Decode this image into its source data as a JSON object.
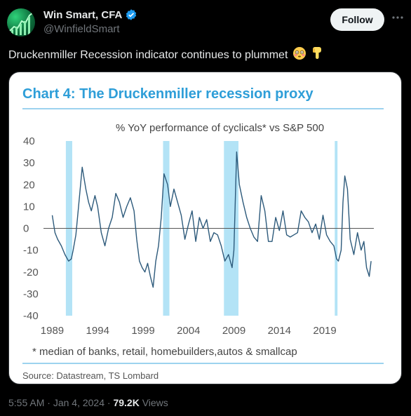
{
  "author": {
    "name": "Win Smart, CFA",
    "handle": "@WinfieldSmart",
    "verified": true
  },
  "follow_label": "Follow",
  "tweet_text": "Druckenmiller Recession indicator continues to plummet",
  "emojis": [
    "flushed-face-emoji",
    "backhand-index-pointing-down-emoji"
  ],
  "media": {
    "chart_title": "Chart 4: The Druckenmiller recession proxy",
    "subtitle": "% YoY performance of cyclicals* vs S&P 500",
    "footnote": "* median of banks, retail, homebuilders,autos & smallcap",
    "source": "Source: Datastream, TS Lombard"
  },
  "chart_data": {
    "type": "line",
    "title": "Chart 4: The Druckenmiller recession proxy",
    "subtitle": "% YoY performance of cyclicals* vs S&P 500",
    "ylim": [
      -40,
      40
    ],
    "y_ticks": [
      "40",
      "30",
      "20",
      "10",
      "0",
      "-10",
      "-20",
      "-30",
      "-40"
    ],
    "y_tick_values": [
      40,
      30,
      20,
      10,
      0,
      -10,
      -20,
      -30,
      -40
    ],
    "xlim": [
      1988.5,
      2024.4
    ],
    "x_ticks": [
      "1989",
      "1994",
      "1999",
      "2004",
      "2009",
      "2014",
      "2019"
    ],
    "x_tick_values": [
      1989,
      1994,
      1999,
      2004,
      2009,
      2014,
      2019
    ],
    "recession_bands": [
      [
        1990.5,
        1991.2
      ],
      [
        2001.2,
        2001.9
      ],
      [
        2007.9,
        2009.5
      ],
      [
        2020.1,
        2020.4
      ]
    ],
    "colors": {
      "line": "#2d5a7b",
      "band": "#b3e3f6",
      "zero_line": "#555555"
    },
    "series": [
      {
        "x": [
          1989.0,
          1989.3,
          1989.6,
          1990.0,
          1990.4,
          1990.8,
          1991.1,
          1991.3,
          1991.6,
          1991.9,
          1992.3,
          1992.7,
          1993.0,
          1993.3,
          1993.7,
          1994.0,
          1994.4,
          1994.8,
          1995.2,
          1995.6,
          1996.0,
          1996.4,
          1996.8,
          1997.2,
          1997.6,
          1998.0,
          1998.3,
          1998.6,
          1998.9,
          1999.2,
          1999.5,
          1999.8,
          2000.1,
          2000.4,
          2000.7,
          2001.0,
          2001.3,
          2001.7,
          2002.0,
          2002.4,
          2002.8,
          2003.2,
          2003.6,
          2004.0,
          2004.4,
          2004.8,
          2005.2,
          2005.6,
          2006.0,
          2006.4,
          2006.8,
          2007.2,
          2007.6,
          2008.0,
          2008.4,
          2008.8,
          2009.0,
          2009.3,
          2009.6,
          2010.0,
          2010.4,
          2010.8,
          2011.2,
          2011.6,
          2012.0,
          2012.4,
          2012.8,
          2013.2,
          2013.6,
          2014.0,
          2014.4,
          2014.8,
          2015.2,
          2015.6,
          2016.0,
          2016.4,
          2016.8,
          2017.2,
          2017.6,
          2018.0,
          2018.4,
          2018.8,
          2019.2,
          2019.6,
          2020.0,
          2020.3,
          2020.5,
          2020.8,
          2021.0,
          2021.2,
          2021.5,
          2021.8,
          2022.2,
          2022.6,
          2023.0,
          2023.3,
          2023.6,
          2023.9,
          2024.1
        ],
        "y": [
          6,
          -2,
          -5,
          -8,
          -12,
          -15,
          -14,
          -10,
          -3,
          10,
          28,
          18,
          12,
          8,
          15,
          10,
          -2,
          -8,
          0,
          5,
          16,
          12,
          5,
          10,
          14,
          8,
          -5,
          -15,
          -18,
          -20,
          -16,
          -22,
          -27,
          -15,
          -8,
          5,
          25,
          20,
          10,
          18,
          12,
          6,
          -5,
          2,
          8,
          -6,
          5,
          0,
          4,
          -6,
          -2,
          -3,
          -8,
          -15,
          -12,
          -18,
          -10,
          35,
          20,
          12,
          5,
          0,
          -4,
          -6,
          15,
          8,
          -6,
          -6,
          5,
          -1,
          8,
          -3,
          -4,
          -3,
          -2,
          8,
          5,
          3,
          -2,
          2,
          -5,
          6,
          -3,
          -6,
          -8,
          -14,
          -15,
          -10,
          12,
          24,
          18,
          -5,
          -12,
          -2,
          -10,
          -6,
          -18,
          -22,
          -15
        ]
      }
    ]
  },
  "meta": {
    "time": "5:55 AM",
    "date": "Jan 4, 2024",
    "views_count": "79.2K",
    "views_label": "Views",
    "sep": "·"
  }
}
